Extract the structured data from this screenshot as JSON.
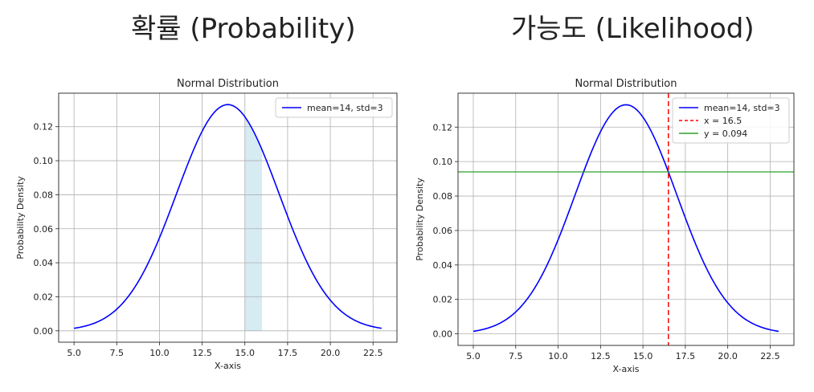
{
  "headings": {
    "left": "확률 (Probability)",
    "right": "가능도 (Likelihood)"
  },
  "chart_data": [
    {
      "type": "line",
      "title": "Normal Distribution",
      "xlabel": "X-axis",
      "ylabel": "Probability Density",
      "xlim": [
        4.1,
        23.9
      ],
      "ylim": [
        -0.0067,
        0.1397
      ],
      "xticks": [
        5.0,
        7.5,
        10.0,
        12.5,
        15.0,
        17.5,
        20.0,
        22.5
      ],
      "yticks": [
        0.0,
        0.02,
        0.04,
        0.06,
        0.08,
        0.1,
        0.12
      ],
      "grid": true,
      "legend_position": "top-right",
      "series": [
        {
          "name": "mean=14, std=3",
          "kind": "normal_pdf",
          "mean": 14,
          "std": 3,
          "x_range": [
            5,
            23
          ],
          "color": "#0000ff"
        }
      ],
      "shaded_region": {
        "x_range": [
          15,
          16
        ],
        "color": "#add8e6"
      }
    },
    {
      "type": "line",
      "title": "Normal Distribution",
      "xlabel": "X-axis",
      "ylabel": "Probability Density",
      "xlim": [
        4.1,
        23.9
      ],
      "ylim": [
        -0.0067,
        0.1397
      ],
      "xticks": [
        5.0,
        7.5,
        10.0,
        12.5,
        15.0,
        17.5,
        20.0,
        22.5
      ],
      "yticks": [
        0.0,
        0.02,
        0.04,
        0.06,
        0.08,
        0.1,
        0.12
      ],
      "grid": true,
      "legend_position": "top-right",
      "series": [
        {
          "name": "mean=14, std=3",
          "kind": "normal_pdf",
          "mean": 14,
          "std": 3,
          "x_range": [
            5,
            23
          ],
          "color": "#0000ff"
        }
      ],
      "vline": {
        "x": 16.5,
        "label": "x = 16.5",
        "color": "#ff0000",
        "style": "dashed"
      },
      "hline": {
        "y": 0.094,
        "label": "y = 0.094",
        "color": "#2ca02c",
        "style": "solid"
      }
    }
  ]
}
